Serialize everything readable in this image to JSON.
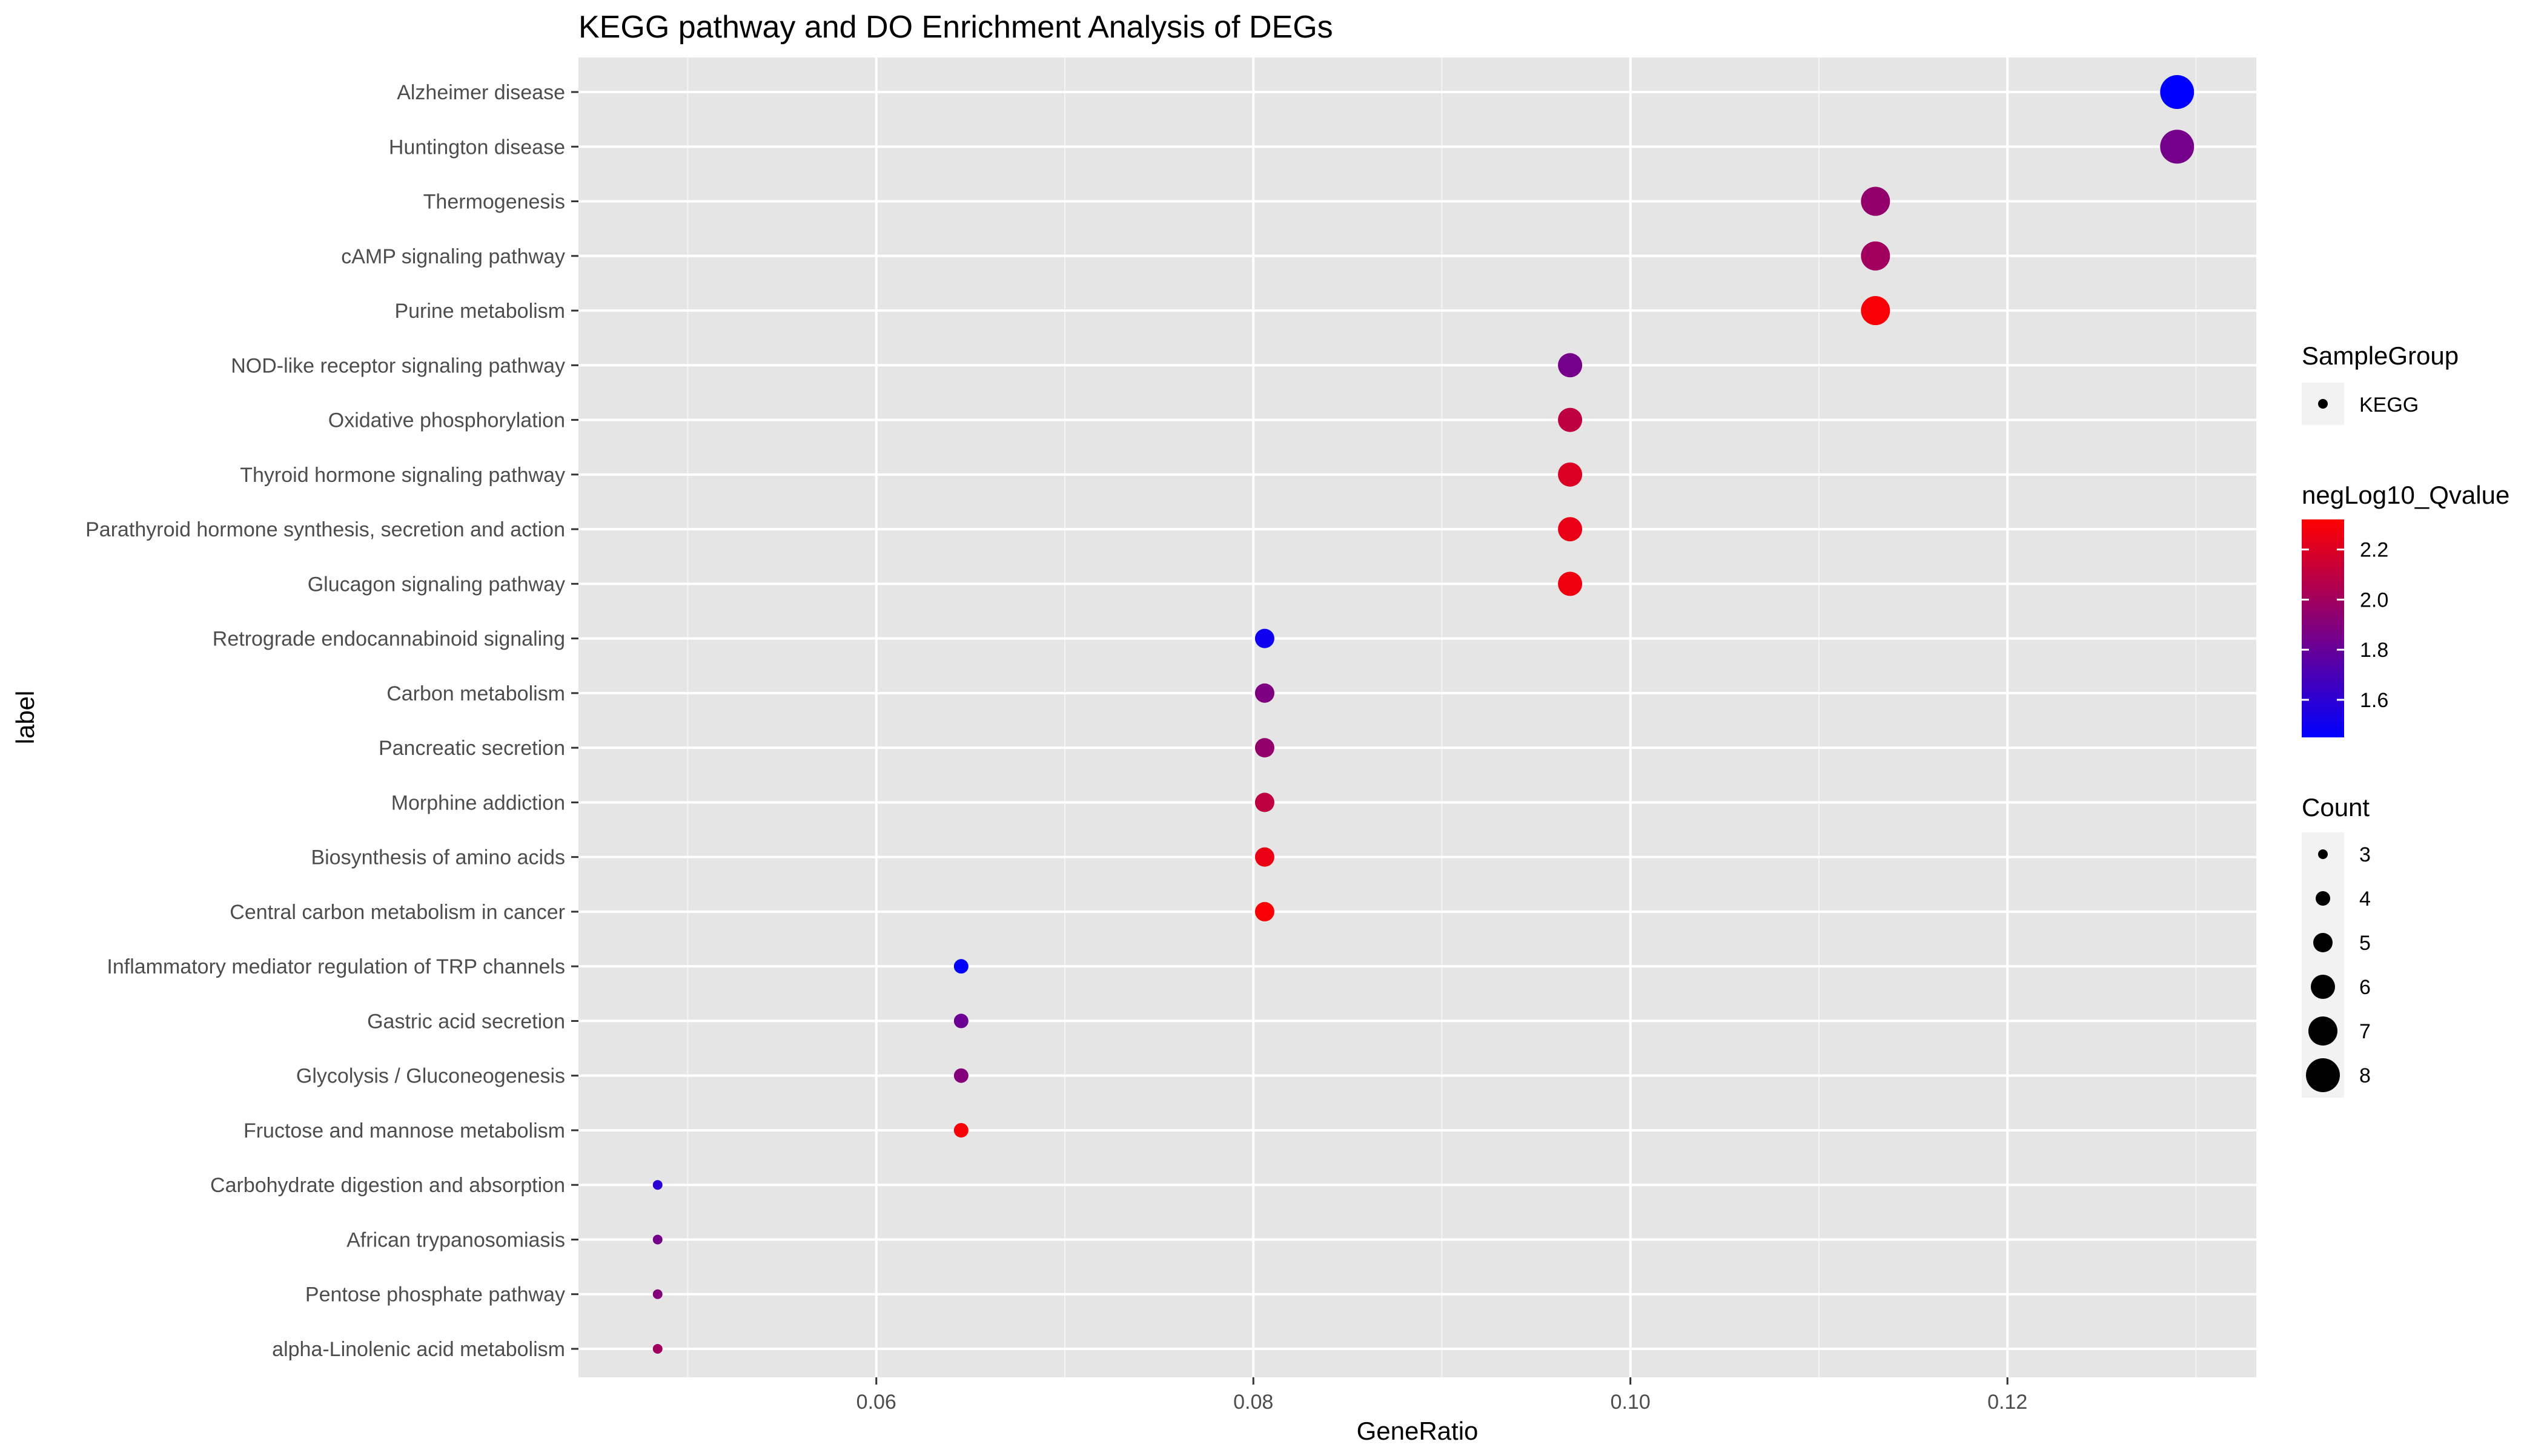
{
  "chart_data": {
    "type": "scatter",
    "title": "KEGG pathway and DO Enrichment Analysis of DEGs",
    "xlabel": "GeneRatio",
    "ylabel": "label",
    "xlim": [
      0.0442,
      0.1332
    ],
    "x_ticks": [
      0.06,
      0.08,
      0.1,
      0.12
    ],
    "x_tick_labels": [
      "0.06",
      "0.08",
      "0.10",
      "0.12"
    ],
    "grid": true,
    "categories": [
      "Alzheimer disease",
      "Huntington disease",
      "Thermogenesis",
      "cAMP signaling pathway",
      "Purine metabolism",
      "NOD-like receptor signaling pathway",
      "Oxidative phosphorylation",
      "Thyroid hormone signaling pathway",
      "Parathyroid hormone synthesis, secretion and action",
      "Glucagon signaling pathway",
      "Retrograde endocannabinoid signaling",
      "Carbon metabolism",
      "Pancreatic secretion",
      "Morphine addiction",
      "Biosynthesis of amino acids",
      "Central carbon metabolism in cancer",
      "Inflammatory mediator regulation of TRP channels",
      "Gastric acid secretion",
      "Glycolysis / Gluconeogenesis",
      "Fructose and mannose metabolism",
      "Carbohydrate digestion and absorption",
      "African trypanosomiasis",
      "Pentose phosphate pathway",
      "alpha-Linolenic acid metabolism"
    ],
    "points": [
      {
        "label": "Alzheimer disease",
        "x": 0.129,
        "count": 8,
        "q": 1.45
      },
      {
        "label": "Huntington disease",
        "x": 0.129,
        "count": 8,
        "q": 1.85
      },
      {
        "label": "Thermogenesis",
        "x": 0.113,
        "count": 7,
        "q": 1.95
      },
      {
        "label": "cAMP signaling pathway",
        "x": 0.113,
        "count": 7,
        "q": 2.0
      },
      {
        "label": "Purine metabolism",
        "x": 0.113,
        "count": 7,
        "q": 2.3
      },
      {
        "label": "NOD-like receptor signaling pathway",
        "x": 0.0968,
        "count": 6,
        "q": 1.85
      },
      {
        "label": "Oxidative phosphorylation",
        "x": 0.0968,
        "count": 6,
        "q": 2.1
      },
      {
        "label": "Thyroid hormone signaling pathway",
        "x": 0.0968,
        "count": 6,
        "q": 2.2
      },
      {
        "label": "Parathyroid hormone synthesis, secretion and action",
        "x": 0.0968,
        "count": 6,
        "q": 2.25
      },
      {
        "label": "Glucagon signaling pathway",
        "x": 0.0968,
        "count": 6,
        "q": 2.27
      },
      {
        "label": "Retrograde endocannabinoid signaling",
        "x": 0.0806,
        "count": 5,
        "q": 1.5
      },
      {
        "label": "Carbon metabolism",
        "x": 0.0806,
        "count": 5,
        "q": 1.88
      },
      {
        "label": "Pancreatic secretion",
        "x": 0.0806,
        "count": 5,
        "q": 1.95
      },
      {
        "label": "Morphine addiction",
        "x": 0.0806,
        "count": 5,
        "q": 2.1
      },
      {
        "label": "Biosynthesis of amino acids",
        "x": 0.0806,
        "count": 5,
        "q": 2.25
      },
      {
        "label": "Central carbon metabolism in cancer",
        "x": 0.0806,
        "count": 5,
        "q": 2.3
      },
      {
        "label": "Inflammatory mediator regulation of TRP channels",
        "x": 0.0645,
        "count": 4,
        "q": 1.45
      },
      {
        "label": "Gastric acid secretion",
        "x": 0.0645,
        "count": 4,
        "q": 1.82
      },
      {
        "label": "Glycolysis / Gluconeogenesis",
        "x": 0.0645,
        "count": 4,
        "q": 1.9
      },
      {
        "label": "Fructose and mannose metabolism",
        "x": 0.0645,
        "count": 4,
        "q": 2.3
      },
      {
        "label": "Carbohydrate digestion and absorption",
        "x": 0.0484,
        "count": 3,
        "q": 1.6
      },
      {
        "label": "African trypanosomiasis",
        "x": 0.0484,
        "count": 3,
        "q": 1.85
      },
      {
        "label": "Pentose phosphate pathway",
        "x": 0.0484,
        "count": 3,
        "q": 1.9
      },
      {
        "label": "alpha-Linolenic acid metabolism",
        "x": 0.0484,
        "count": 3,
        "q": 2.0
      }
    ],
    "legend": {
      "placement": "right",
      "shape_title": "SampleGroup",
      "shape_items": [
        "KEGG"
      ],
      "color_title": "negLog10_Qvalue",
      "color_range": [
        1.45,
        2.32
      ],
      "color_low": "#0000ff",
      "color_high": "#ff0000",
      "color_ticks": [
        1.6,
        1.8,
        2.0,
        2.2
      ],
      "color_tick_labels": [
        "1.6",
        "1.8",
        "2.0",
        "2.2"
      ],
      "size_title": "Count",
      "size_values": [
        3,
        4,
        5,
        6,
        7,
        8
      ],
      "size_labels": [
        "3",
        "4",
        "5",
        "6",
        "7",
        "8"
      ]
    },
    "colors": {
      "panel_background": "#e5e5e5",
      "grid": "#ffffff",
      "point_size_key": "#000000",
      "text": "#000000",
      "tick_text": "#4d4d4d"
    }
  }
}
